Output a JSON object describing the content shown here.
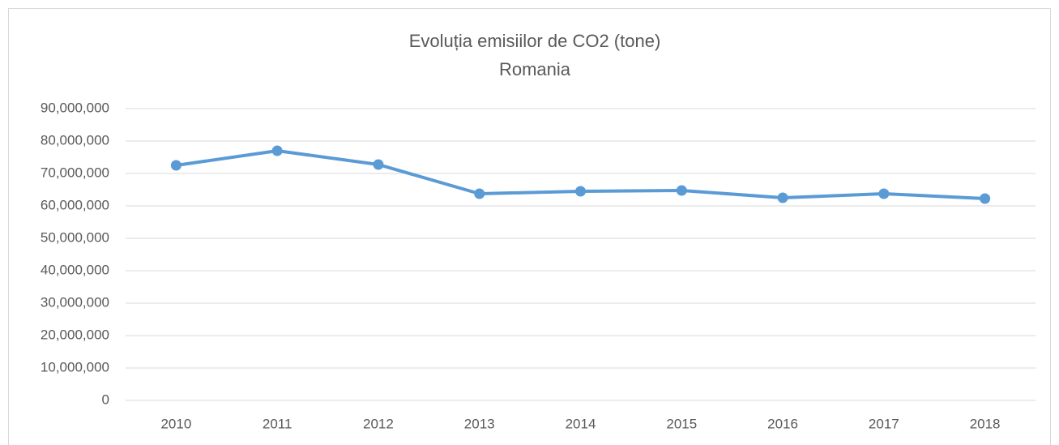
{
  "chart_data": {
    "type": "line",
    "title": "Evoluția emisiilor de CO2 (tone)",
    "subtitle": "Romania",
    "categories": [
      "2010",
      "2011",
      "2012",
      "2013",
      "2014",
      "2015",
      "2016",
      "2017",
      "2018"
    ],
    "series": [
      {
        "name": "Romania",
        "color": "#5b9bd5",
        "values": [
          72500000,
          77000000,
          72750000,
          63750000,
          64500000,
          64750000,
          62500000,
          63750000,
          62250000
        ]
      }
    ],
    "ylim": [
      0,
      90000000
    ],
    "yticks": [
      0,
      {
        "value": 10000000,
        "label": "10,000,000"
      },
      {
        "value": 20000000,
        "label": "20,000,000"
      },
      {
        "value": 30000000,
        "label": "30,000,000"
      },
      {
        "value": 40000000,
        "label": "40,000,000"
      },
      {
        "value": 50000000,
        "label": "50,000,000"
      },
      {
        "value": 60000000,
        "label": "60,000,000"
      },
      {
        "value": 70000000,
        "label": "70,000,000"
      },
      {
        "value": 80000000,
        "label": "80,000,000"
      },
      {
        "value": 90000000,
        "label": "90,000,000"
      }
    ],
    "grid": true
  }
}
